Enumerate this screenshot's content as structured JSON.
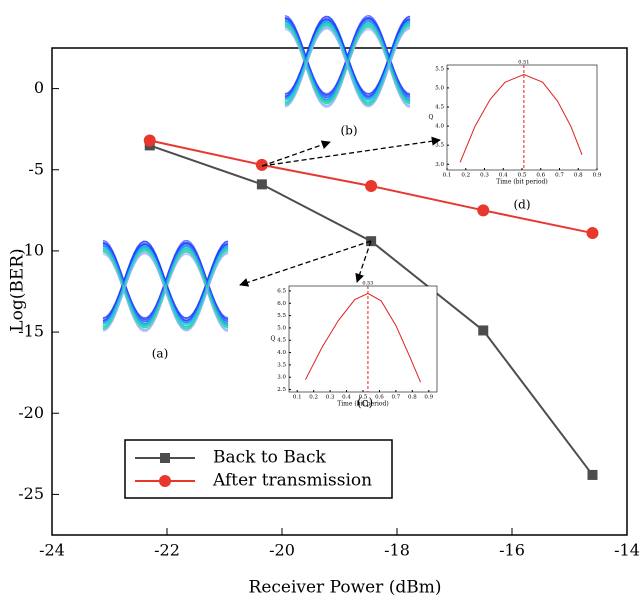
{
  "chart_data": [
    {
      "type": "line",
      "x_label": "Receiver Power (dBm)",
      "y_label": "Log(BER)",
      "x": [
        -22.3,
        -20.35,
        -18.45,
        -16.5,
        -14.6
      ],
      "series": [
        {
          "name": "Back to Back",
          "color": "#4d4d4d",
          "marker": "square",
          "values": [
            -3.5,
            -5.9,
            -9.4,
            -14.9,
            -23.8
          ]
        },
        {
          "name": "After transmission",
          "color": "#e8382e",
          "marker": "circle",
          "values": [
            -3.2,
            -4.7,
            -6.0,
            -7.5,
            -8.9
          ]
        }
      ],
      "xlim": [
        -24,
        -14
      ],
      "xticks": [
        -24,
        -22,
        -20,
        -18,
        -16,
        -14
      ],
      "ylim": [
        -27.5,
        2.5
      ],
      "yticks": [
        0,
        -5,
        -10,
        -15,
        -20,
        -25
      ],
      "legend": "lower left"
    },
    {
      "type": "line",
      "label": "(d)",
      "x_label": "Time (bit period)",
      "y_label": "Q",
      "vline": 0.51,
      "x": [
        0.17,
        0.25,
        0.33,
        0.41,
        0.51,
        0.61,
        0.69,
        0.76,
        0.82
      ],
      "series": [
        {
          "color": "#e02020",
          "values": [
            3.05,
            4.0,
            4.7,
            5.15,
            5.35,
            5.15,
            4.65,
            4.0,
            3.25
          ]
        }
      ],
      "xlim": [
        0.1,
        0.9
      ],
      "xticks": [
        0.1,
        0.2,
        0.3,
        0.4,
        0.5,
        0.6,
        0.7,
        0.8,
        0.9
      ],
      "ylim": [
        2.85,
        5.6
      ],
      "yticks": [
        {
          "value": 3,
          "label": "3.0"
        },
        3.5,
        {
          "value": 4,
          "label": "4.0"
        },
        4.5,
        {
          "value": 5,
          "label": "5.0"
        },
        5.5
      ]
    },
    {
      "type": "line",
      "label": "(c)",
      "x_label": "Time (bit period)",
      "y_label": "Q",
      "vline": 0.53,
      "x": [
        0.15,
        0.25,
        0.35,
        0.45,
        0.53,
        0.61,
        0.7,
        0.78,
        0.85
      ],
      "series": [
        {
          "color": "#e02020",
          "values": [
            2.9,
            4.2,
            5.3,
            6.15,
            6.4,
            6.1,
            5.1,
            3.9,
            2.8
          ]
        }
      ],
      "xlim": [
        0.05,
        0.95
      ],
      "xticks": [
        0.1,
        0.2,
        0.3,
        0.4,
        0.5,
        0.6,
        0.7,
        0.8,
        0.9
      ],
      "ylim": [
        2.4,
        6.7
      ],
      "yticks": [
        2.5,
        {
          "value": 3,
          "label": "3.0"
        },
        3.5,
        {
          "value": 4,
          "label": "4.0"
        },
        4.5,
        {
          "value": 5,
          "label": "5.0"
        },
        5.5,
        {
          "value": 6,
          "label": "6.0"
        },
        6.5
      ]
    },
    {
      "type": "eye",
      "label": "(a)"
    },
    {
      "type": "eye",
      "label": "(b)"
    }
  ]
}
